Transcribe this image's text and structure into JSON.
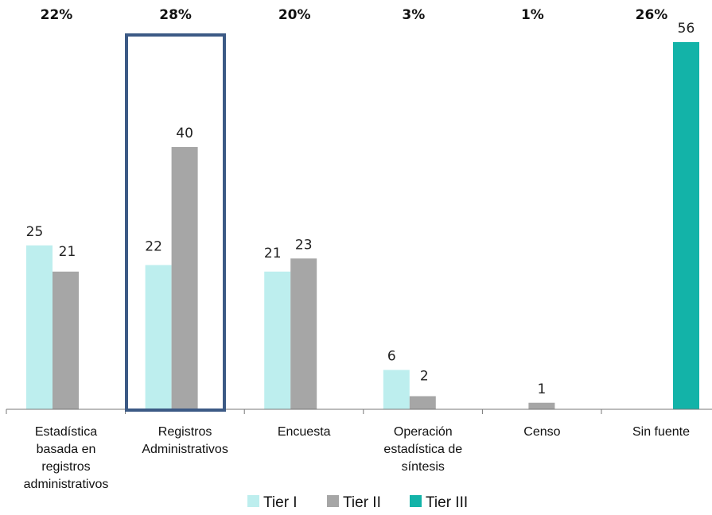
{
  "chart_data": {
    "type": "bar",
    "categories": [
      [
        "Estadística",
        "basada en",
        "registros",
        "administrativos"
      ],
      [
        "Registros",
        "Administrativos"
      ],
      [
        "Encuesta"
      ],
      [
        "Operación",
        "estadística de",
        "síntesis"
      ],
      [
        "Censo"
      ],
      [
        "Sin fuente"
      ]
    ],
    "percentages": [
      "22%",
      "28%",
      "20%",
      "3%",
      "1%",
      "26%"
    ],
    "series": [
      {
        "name": "Tier I",
        "color": "#bdeeee",
        "values": [
          25,
          22,
          21,
          6,
          null,
          null
        ]
      },
      {
        "name": "Tier II",
        "color": "#a6a6a6",
        "values": [
          21,
          40,
          23,
          2,
          1,
          null
        ]
      },
      {
        "name": "Tier III",
        "color": "#13b3a8",
        "values": [
          null,
          null,
          null,
          null,
          null,
          56
        ]
      }
    ],
    "ylim": [
      0,
      56
    ],
    "grid": false,
    "legend_position": "bottom",
    "highlighted_category": 1,
    "highlight_color": "#3c5a85"
  }
}
